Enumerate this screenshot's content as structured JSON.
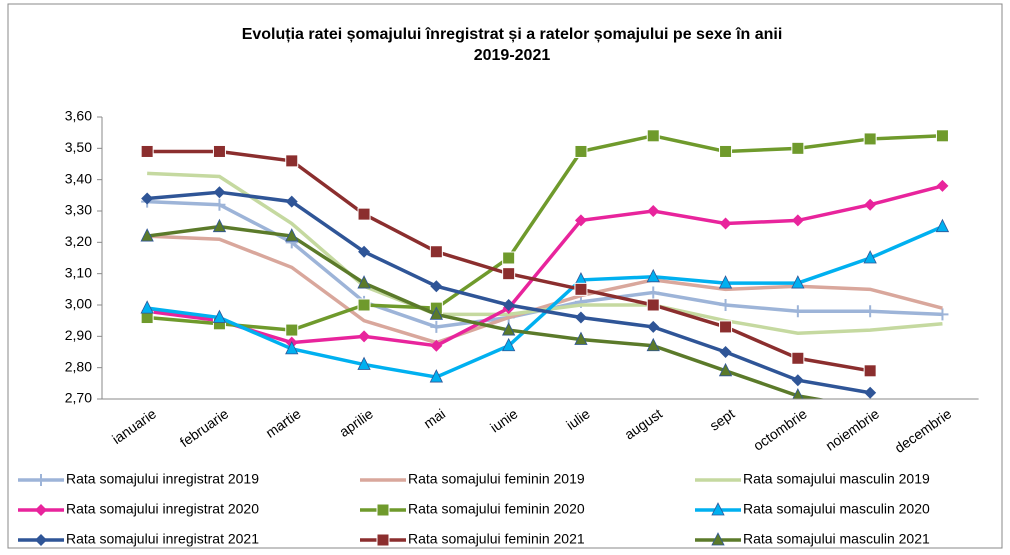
{
  "chart_data": {
    "type": "line",
    "title": [
      "Evoluția ratei șomajului înregistrat și a ratelor șomajului pe sexe în anii",
      "2019-2021"
    ],
    "categories": [
      "ianuarie",
      "februarie",
      "martie",
      "aprilie",
      "mai",
      "iunie",
      "iulie",
      "august",
      "sept",
      "octombrie",
      "noiembrie",
      "decembrie"
    ],
    "ylim": [
      2.7,
      3.6
    ],
    "yticks": [
      {
        "value": 2.7,
        "label": "2,70"
      },
      {
        "value": 2.8,
        "label": "2,80"
      },
      {
        "value": 2.9,
        "label": "2,90"
      },
      {
        "value": 3.0,
        "label": "3,00"
      },
      {
        "value": 3.1,
        "label": "3,10"
      },
      {
        "value": 3.2,
        "label": "3,20"
      },
      {
        "value": 3.3,
        "label": "3,30"
      },
      {
        "value": 3.4,
        "label": "3,40"
      },
      {
        "value": 3.5,
        "label": "3,50"
      },
      {
        "value": 3.6,
        "label": "3,60"
      }
    ],
    "series": [
      {
        "name": "Rata somajului inregistrat 2019",
        "color": "#9db4d8",
        "marker": "plus",
        "values": [
          3.33,
          3.32,
          3.2,
          3.01,
          2.93,
          2.96,
          3.01,
          3.04,
          3.0,
          2.98,
          2.98,
          2.97
        ]
      },
      {
        "name": "Rata somajului feminin 2019",
        "color": "#d9a79c",
        "marker": "none",
        "values": [
          3.22,
          3.21,
          3.12,
          2.95,
          2.88,
          2.96,
          3.03,
          3.08,
          3.05,
          3.06,
          3.05,
          2.99
        ]
      },
      {
        "name": "Rata somajului masculin 2019",
        "color": "#c5d9a0",
        "marker": "none",
        "values": [
          3.42,
          3.41,
          3.26,
          3.06,
          2.97,
          2.97,
          3.0,
          3.0,
          2.95,
          2.91,
          2.92,
          2.94
        ]
      },
      {
        "name": "Rata somajului inregistrat 2020",
        "color": "#e8249c",
        "marker": "diamond",
        "values": [
          2.98,
          2.95,
          2.88,
          2.9,
          2.87,
          2.99,
          3.27,
          3.3,
          3.26,
          3.27,
          3.32,
          3.38
        ]
      },
      {
        "name": "Rata somajului feminin 2020",
        "color": "#6f9a2c",
        "marker": "square",
        "values": [
          2.96,
          2.94,
          2.92,
          3.0,
          2.99,
          3.15,
          3.49,
          3.54,
          3.49,
          3.5,
          3.53,
          3.54
        ]
      },
      {
        "name": "Rata somajului masculin 2020",
        "color": "#00b0f0",
        "marker": "triangle",
        "values": [
          2.99,
          2.96,
          2.86,
          2.81,
          2.77,
          2.87,
          3.08,
          3.09,
          3.07,
          3.07,
          3.15,
          3.25
        ]
      },
      {
        "name": "Rata somajului inregistrat 2021",
        "color": "#2f5597",
        "marker": "diamond",
        "values": [
          3.34,
          3.36,
          3.33,
          3.17,
          3.06,
          3.0,
          2.96,
          2.93,
          2.85,
          2.76,
          2.72,
          null
        ]
      },
      {
        "name": "Rata somajului feminin 2021",
        "color": "#8b2e2e",
        "marker": "square",
        "values": [
          3.49,
          3.49,
          3.46,
          3.29,
          3.17,
          3.1,
          3.05,
          3.0,
          2.93,
          2.83,
          2.79,
          null
        ]
      },
      {
        "name": "Rata somajului masculin 2021",
        "color": "#5b7a2a",
        "marker": "triangle",
        "values": [
          3.22,
          3.25,
          3.22,
          3.07,
          2.97,
          2.92,
          2.89,
          2.87,
          2.79,
          2.71,
          2.67,
          null
        ]
      }
    ]
  }
}
